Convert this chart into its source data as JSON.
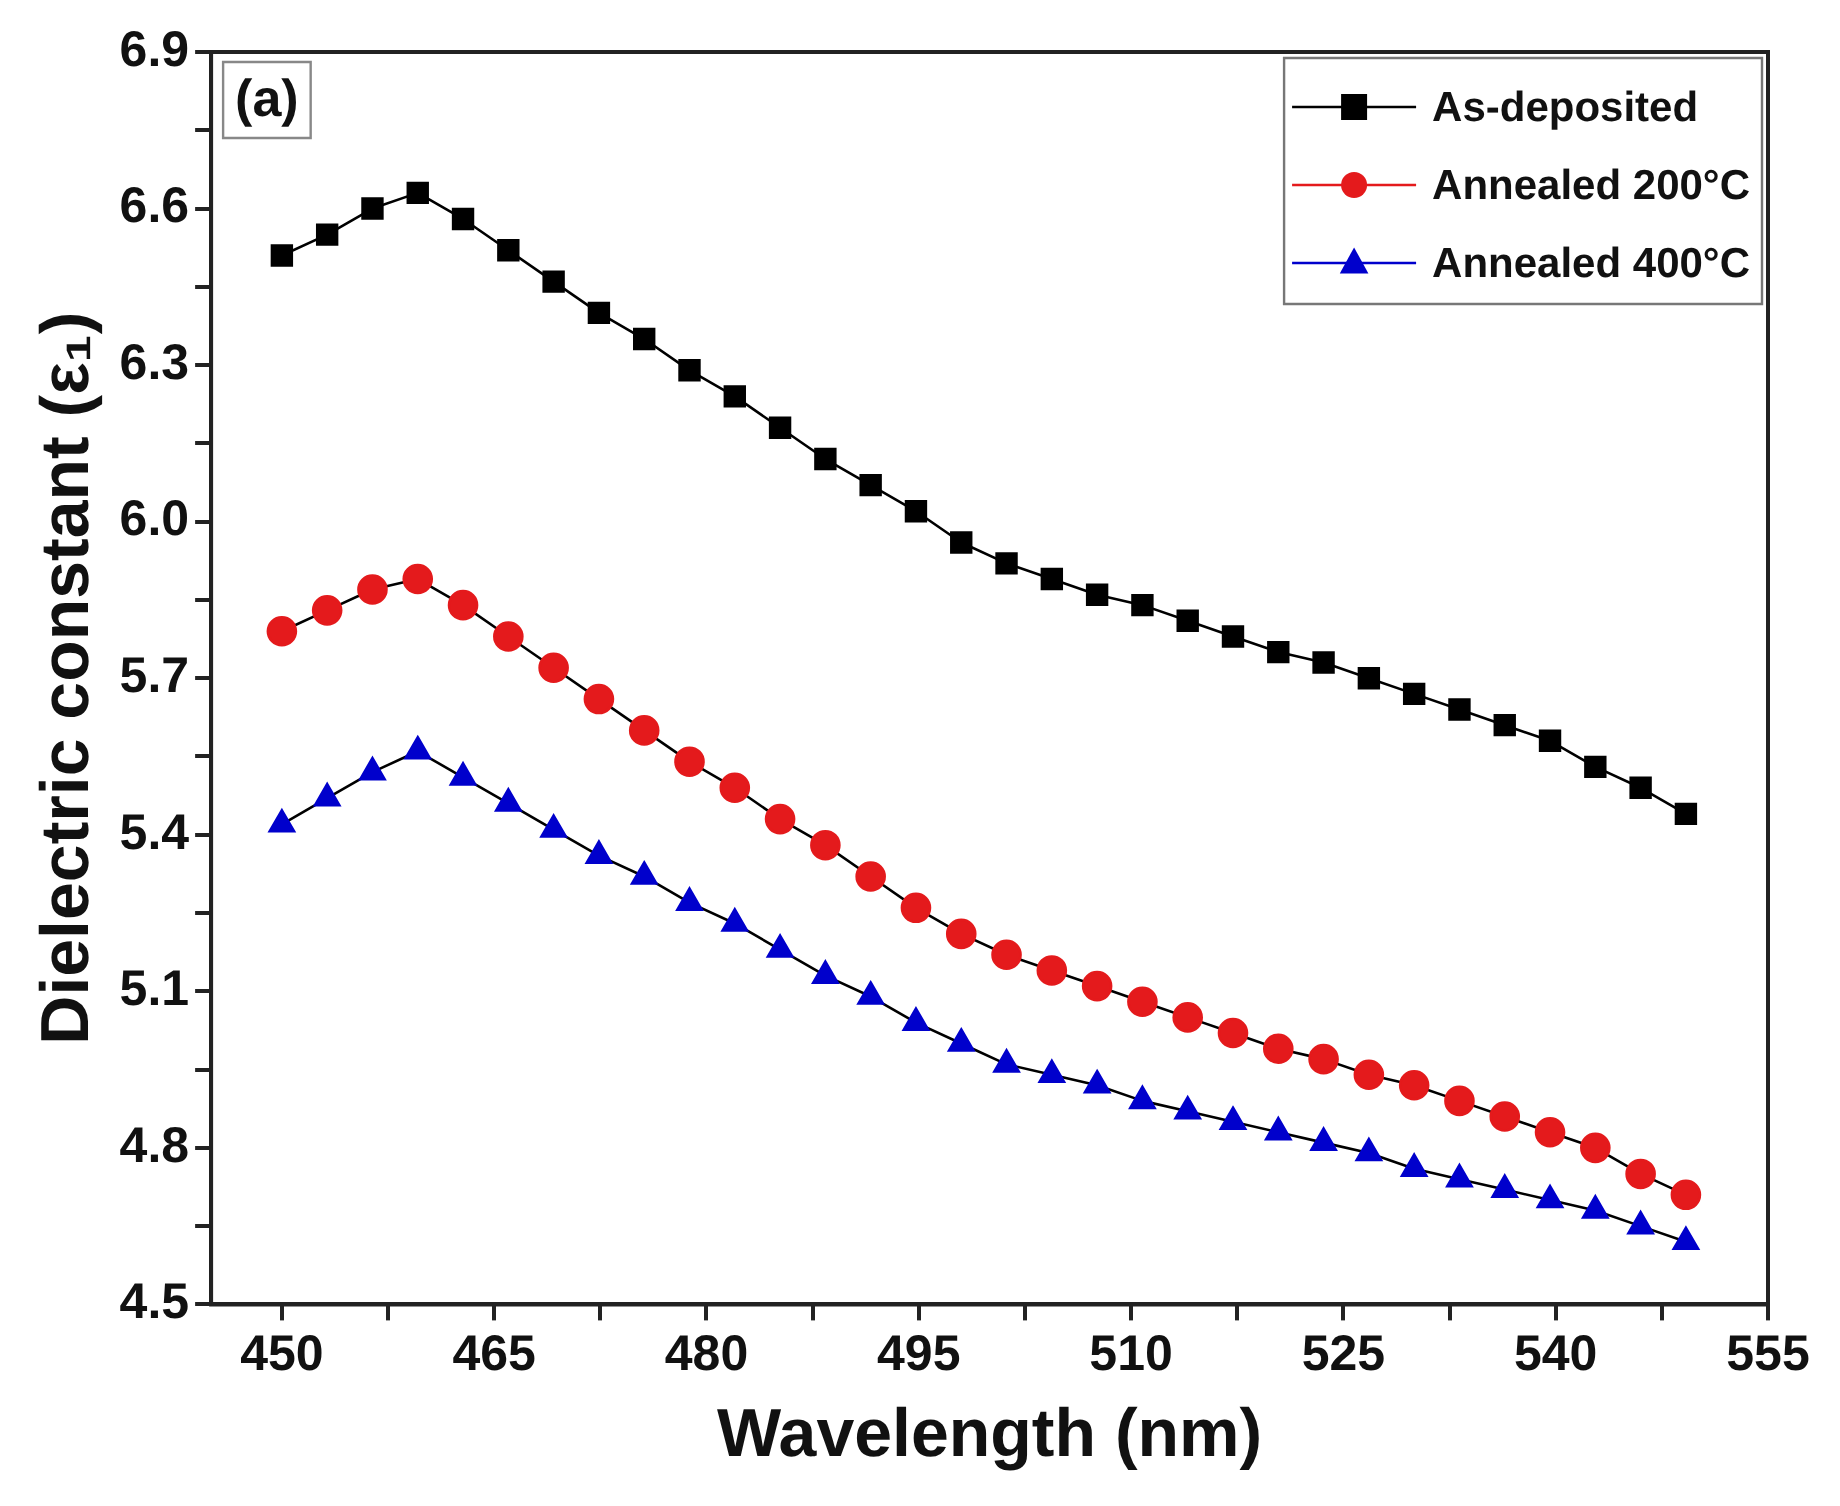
{
  "chart_data": {
    "type": "line",
    "xlabel": "Wavelength (nm)",
    "ylabel": "Dielectric constant (ε₁)",
    "annotations": [
      "(a)"
    ],
    "x": [
      450,
      453.2,
      456.4,
      459.6,
      462.8,
      466,
      469.2,
      472.4,
      475.6,
      478.8,
      482,
      485.2,
      488.4,
      491.6,
      494.8,
      498,
      501.2,
      504.4,
      507.6,
      510.8,
      514,
      517.2,
      520.4,
      523.6,
      526.8,
      530,
      533.2,
      536.4,
      539.6,
      542.8,
      546,
      549.2
    ],
    "series": [
      {
        "name": "As-deposited",
        "color": "#000000",
        "marker": "square",
        "values": [
          6.51,
          6.55,
          6.6,
          6.63,
          6.58,
          6.52,
          6.46,
          6.4,
          6.35,
          6.29,
          6.24,
          6.18,
          6.12,
          6.07,
          6.02,
          5.96,
          5.92,
          5.89,
          5.86,
          5.84,
          5.81,
          5.78,
          5.75,
          5.73,
          5.7,
          5.67,
          5.64,
          5.61,
          5.58,
          5.53,
          5.49,
          5.44
        ]
      },
      {
        "name": "Annealed 200°C",
        "color": "#e41a1c",
        "marker": "circle",
        "values": [
          5.79,
          5.83,
          5.87,
          5.89,
          5.84,
          5.78,
          5.72,
          5.66,
          5.6,
          5.54,
          5.49,
          5.43,
          5.38,
          5.32,
          5.26,
          5.21,
          5.17,
          5.14,
          5.11,
          5.08,
          5.05,
          5.02,
          4.99,
          4.97,
          4.94,
          4.92,
          4.89,
          4.86,
          4.83,
          4.8,
          4.75,
          4.71
        ]
      },
      {
        "name": "Annealed 400°C",
        "color": "#0000cc",
        "marker": "triangle",
        "values": [
          5.42,
          5.47,
          5.52,
          5.56,
          5.51,
          5.46,
          5.41,
          5.36,
          5.32,
          5.27,
          5.23,
          5.18,
          5.13,
          5.09,
          5.04,
          5.0,
          4.96,
          4.94,
          4.92,
          4.89,
          4.87,
          4.85,
          4.83,
          4.81,
          4.79,
          4.76,
          4.74,
          4.72,
          4.7,
          4.68,
          4.65,
          4.62
        ]
      }
    ],
    "xlim": [
      445,
      555
    ],
    "xticks": [
      450,
      {
        "value": 457.5,
        "label": null
      },
      465,
      {
        "value": 472.5,
        "label": null
      },
      480,
      {
        "value": 487.5,
        "label": null
      },
      495,
      {
        "value": 502.5,
        "label": null
      },
      510,
      {
        "value": 517.5,
        "label": null
      },
      525,
      {
        "value": 532.5,
        "label": null
      },
      540,
      {
        "value": 547.5,
        "label": null
      },
      555
    ],
    "ylim": [
      4.5,
      6.9
    ],
    "yticks": [
      {
        "value": 4.5,
        "label": "4.5"
      },
      {
        "value": 4.65,
        "label": null
      },
      {
        "value": 4.8,
        "label": "4.8"
      },
      {
        "value": 4.95,
        "label": null
      },
      {
        "value": 5.1,
        "label": "5.1"
      },
      {
        "value": 5.25,
        "label": null
      },
      {
        "value": 5.4,
        "label": "5.4"
      },
      {
        "value": 5.55,
        "label": null
      },
      {
        "value": 5.7,
        "label": "5.7"
      },
      {
        "value": 5.85,
        "label": null
      },
      {
        "value": 6.0,
        "label": "6.0"
      },
      {
        "value": 6.15,
        "label": null
      },
      {
        "value": 6.3,
        "label": "6.3"
      },
      {
        "value": 6.45,
        "label": null
      },
      {
        "value": 6.6,
        "label": "6.6"
      },
      {
        "value": 6.75,
        "label": null
      },
      {
        "value": 6.9,
        "label": "6.9"
      }
    ],
    "grid": false,
    "legend": "top right",
    "line_style": "solid"
  }
}
